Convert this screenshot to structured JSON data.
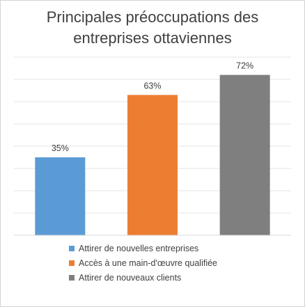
{
  "chart_data": {
    "type": "bar",
    "title_lines": [
      "Principales préoccupations des",
      "entreprises ottaviennes"
    ],
    "categories": [
      "Attirer de nouvelles entreprises",
      "Accès à une main-d'œuvre qualifiée",
      "Attirer de nouveaux clients"
    ],
    "values": [
      35,
      63,
      72
    ],
    "data_labels": [
      "35%",
      "63%",
      "72%"
    ],
    "colors": [
      "#5b9bd5",
      "#ed7d31",
      "#7f7f7f"
    ],
    "ylim": [
      0,
      80
    ],
    "grid": true,
    "legend_position": "bottom",
    "xlabel": "",
    "ylabel": ""
  }
}
